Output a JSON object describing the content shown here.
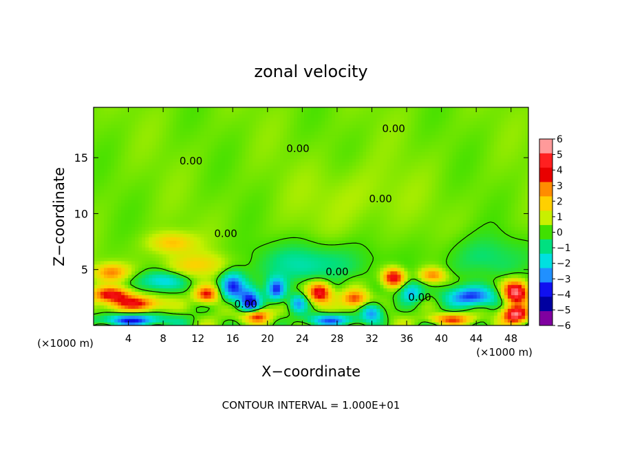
{
  "chart_data": {
    "type": "heatmap",
    "title": "zonal velocity",
    "xlabel": "X−coordinate",
    "ylabel": "Z−coordinate",
    "xlim": [
      0,
      50
    ],
    "ylim": [
      0,
      19.5
    ],
    "x_ticks": [
      4,
      8,
      12,
      16,
      20,
      24,
      28,
      32,
      36,
      40,
      44,
      48
    ],
    "x_tick_labels": [
      "4",
      "8",
      "12",
      "16",
      "20",
      "24",
      "28",
      "32",
      "36",
      "40",
      "44",
      "48"
    ],
    "y_ticks": [
      5,
      10,
      15
    ],
    "y_tick_labels": [
      "5",
      "10",
      "15"
    ],
    "x_unit_left": "(×1000 m)",
    "x_unit_right": "(×1000 m)",
    "footer": "CONTOUR INTERVAL = 1.000E+01",
    "colorbar": {
      "levels": [
        6,
        5,
        4,
        3,
        2,
        1,
        0,
        -1,
        -2,
        -3,
        -4,
        -5,
        -6
      ],
      "labels": [
        "6",
        "5",
        "4",
        "3",
        "2",
        "1",
        "0",
        "−1",
        "−2",
        "−3",
        "−4",
        "−5",
        "−6"
      ],
      "colors": [
        "#ff9a9a",
        "#ff2020",
        "#e80000",
        "#ff8c00",
        "#ffd000",
        "#c8f000",
        "#40e000",
        "#00e080",
        "#00e0e0",
        "#2090ff",
        "#1010f0",
        "#0000a0",
        "#8000a0"
      ]
    },
    "contour_labels": [
      {
        "text": "0.00",
        "x": 23.5,
        "z": 15.5
      },
      {
        "text": "0.00",
        "x": 34.5,
        "z": 17.3
      },
      {
        "text": "0.00",
        "x": 11.2,
        "z": 14.4
      },
      {
        "text": "0.00",
        "x": 33.0,
        "z": 11.0
      },
      {
        "text": "0.00",
        "x": 15.2,
        "z": 7.9
      },
      {
        "text": "0.00",
        "x": 28.0,
        "z": 4.5
      },
      {
        "text": "0.00",
        "x": 17.5,
        "z": 1.6
      },
      {
        "text": "0.00",
        "x": 37.5,
        "z": 2.2
      }
    ],
    "value_anomalies": [
      {
        "x": 16.0,
        "z": 3.5,
        "v": -4.2,
        "sx": 1.4,
        "sz": 1.4
      },
      {
        "x": 18.0,
        "z": 2.0,
        "v": -4.5,
        "sx": 1.2,
        "sz": 1.5
      },
      {
        "x": 18.5,
        "z": 0.9,
        "v": 5.5,
        "sx": 1.5,
        "sz": 0.6
      },
      {
        "x": 13.0,
        "z": 2.8,
        "v": 4.0,
        "sx": 1.3,
        "sz": 0.7
      },
      {
        "x": 21.0,
        "z": 3.2,
        "v": -3.8,
        "sx": 1.0,
        "sz": 1.0
      },
      {
        "x": 26.0,
        "z": 3.0,
        "v": 5.0,
        "sx": 1.3,
        "sz": 0.9
      },
      {
        "x": 23.5,
        "z": 2.0,
        "v": -3.0,
        "sx": 1.0,
        "sz": 0.8
      },
      {
        "x": 30.0,
        "z": 2.4,
        "v": 3.5,
        "sx": 1.4,
        "sz": 0.7
      },
      {
        "x": 32.0,
        "z": 1.2,
        "v": -3.5,
        "sx": 1.2,
        "sz": 0.8
      },
      {
        "x": 34.5,
        "z": 4.3,
        "v": 5.0,
        "sx": 1.2,
        "sz": 0.8
      },
      {
        "x": 36.5,
        "z": 3.0,
        "v": -3.0,
        "sx": 1.3,
        "sz": 0.9
      },
      {
        "x": 39.0,
        "z": 4.5,
        "v": 3.0,
        "sx": 1.4,
        "sz": 0.6
      },
      {
        "x": 43.5,
        "z": 2.6,
        "v": -4.5,
        "sx": 2.8,
        "sz": 0.9
      },
      {
        "x": 48.5,
        "z": 3.0,
        "v": 6.2,
        "sx": 1.4,
        "sz": 1.0
      },
      {
        "x": 48.5,
        "z": 1.0,
        "v": 5.8,
        "sx": 1.4,
        "sz": 0.7
      },
      {
        "x": 5.0,
        "z": 2.0,
        "v": 3.8,
        "sx": 3.0,
        "sz": 0.6
      },
      {
        "x": 2.0,
        "z": 2.8,
        "v": 4.0,
        "sx": 2.2,
        "sz": 0.6
      },
      {
        "x": 4.5,
        "z": 0.5,
        "v": -4.5,
        "sx": 4.0,
        "sz": 0.5
      },
      {
        "x": 8.0,
        "z": 4.0,
        "v": -2.6,
        "sx": 2.6,
        "sz": 0.8
      },
      {
        "x": 2.0,
        "z": 4.8,
        "v": 2.8,
        "sx": 1.8,
        "sz": 0.7
      },
      {
        "x": 9.0,
        "z": 7.4,
        "v": 2.0,
        "sx": 2.5,
        "sz": 0.9
      },
      {
        "x": 25.0,
        "z": 5.5,
        "v": -1.8,
        "sx": 6.0,
        "sz": 1.8
      },
      {
        "x": 12.0,
        "z": 5.4,
        "v": 1.5,
        "sx": 4.0,
        "sz": 1.0
      },
      {
        "x": 27.5,
        "z": 0.5,
        "v": -3.8,
        "sx": 3.0,
        "sz": 0.5
      },
      {
        "x": 41.0,
        "z": 0.6,
        "v": 3.5,
        "sx": 2.5,
        "sz": 0.4
      },
      {
        "x": 45.0,
        "z": 6.0,
        "v": -1.2,
        "sx": 5.0,
        "sz": 2.0
      },
      {
        "x": 30.0,
        "z": 11.5,
        "v": 0.5,
        "sx": 6.0,
        "sz": 3.0
      }
    ],
    "grid": false,
    "colorbar_position": "right"
  }
}
